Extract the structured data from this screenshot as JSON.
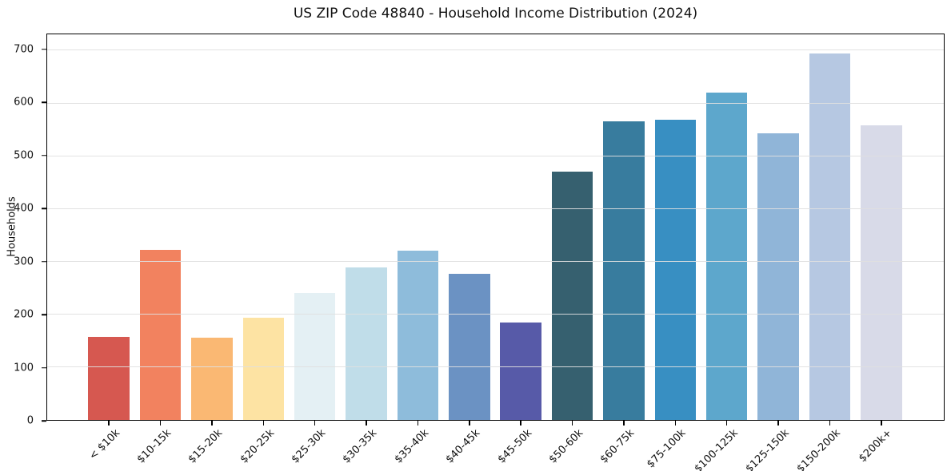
{
  "chart_data": {
    "type": "bar",
    "title": "US ZIP Code 48840 - Household Income Distribution (2024)",
    "xlabel": "",
    "ylabel": "Households",
    "categories": [
      "< $10k",
      "$10-15k",
      "$15-20k",
      "$20-25k",
      "$25-30k",
      "$30-35k",
      "$35-40k",
      "$40-45k",
      "$45-50k",
      "$50-60k",
      "$60-75k",
      "$75-100k",
      "$100-125k",
      "$125-150k",
      "$150-200k",
      "$200k+"
    ],
    "values": [
      157,
      322,
      155,
      194,
      240,
      289,
      321,
      277,
      184,
      470,
      566,
      568,
      620,
      543,
      693,
      558
    ],
    "bar_colors": [
      "#d65850",
      "#f2825f",
      "#fab873",
      "#fde3a3",
      "#e4f0f4",
      "#c0dde9",
      "#8ebcdb",
      "#6b92c3",
      "#575aa8",
      "#36606f",
      "#387c9e",
      "#388fc2",
      "#5da7cc",
      "#90b5d8",
      "#b6c8e2",
      "#d8dae8"
    ],
    "yticks": [
      0,
      100,
      200,
      300,
      400,
      500,
      600,
      700
    ],
    "ylim": [
      0,
      730
    ],
    "grid": "horizontal",
    "legend": "none",
    "x_tick_rotation_deg": 45,
    "axis_color": "#000000",
    "grid_color": "#e0e0e0"
  }
}
